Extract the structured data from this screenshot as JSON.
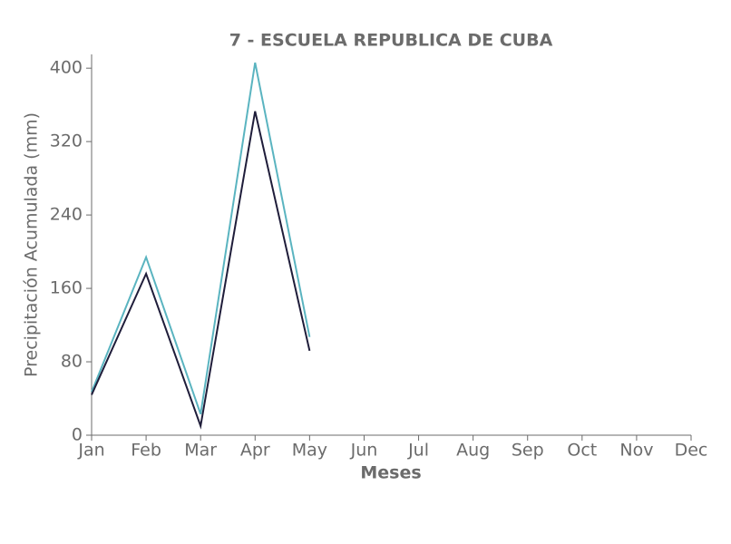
{
  "chart_data": {
    "type": "line",
    "title": "7 - ESCUELA REPUBLICA DE CUBA",
    "xlabel": "Meses",
    "ylabel": "Precipitación Acumulada (mm)",
    "categories": [
      "Jan",
      "Feb",
      "Mar",
      "Apr",
      "May",
      "Jun",
      "Jul",
      "Aug",
      "Sep",
      "Oct",
      "Nov",
      "Dec"
    ],
    "series": [
      {
        "color": "#5ab4c0",
        "values": [
          47,
          194,
          23,
          406,
          107,
          null,
          null,
          null,
          null,
          null,
          null,
          null
        ]
      },
      {
        "color": "#1f1d3a",
        "values": [
          44,
          176,
          10,
          353,
          92,
          null,
          null,
          null,
          null,
          null,
          null,
          null
        ]
      }
    ],
    "ylim": [
      0,
      415
    ],
    "yticks": [
      0,
      80,
      160,
      240,
      320,
      400
    ],
    "grid": false
  }
}
